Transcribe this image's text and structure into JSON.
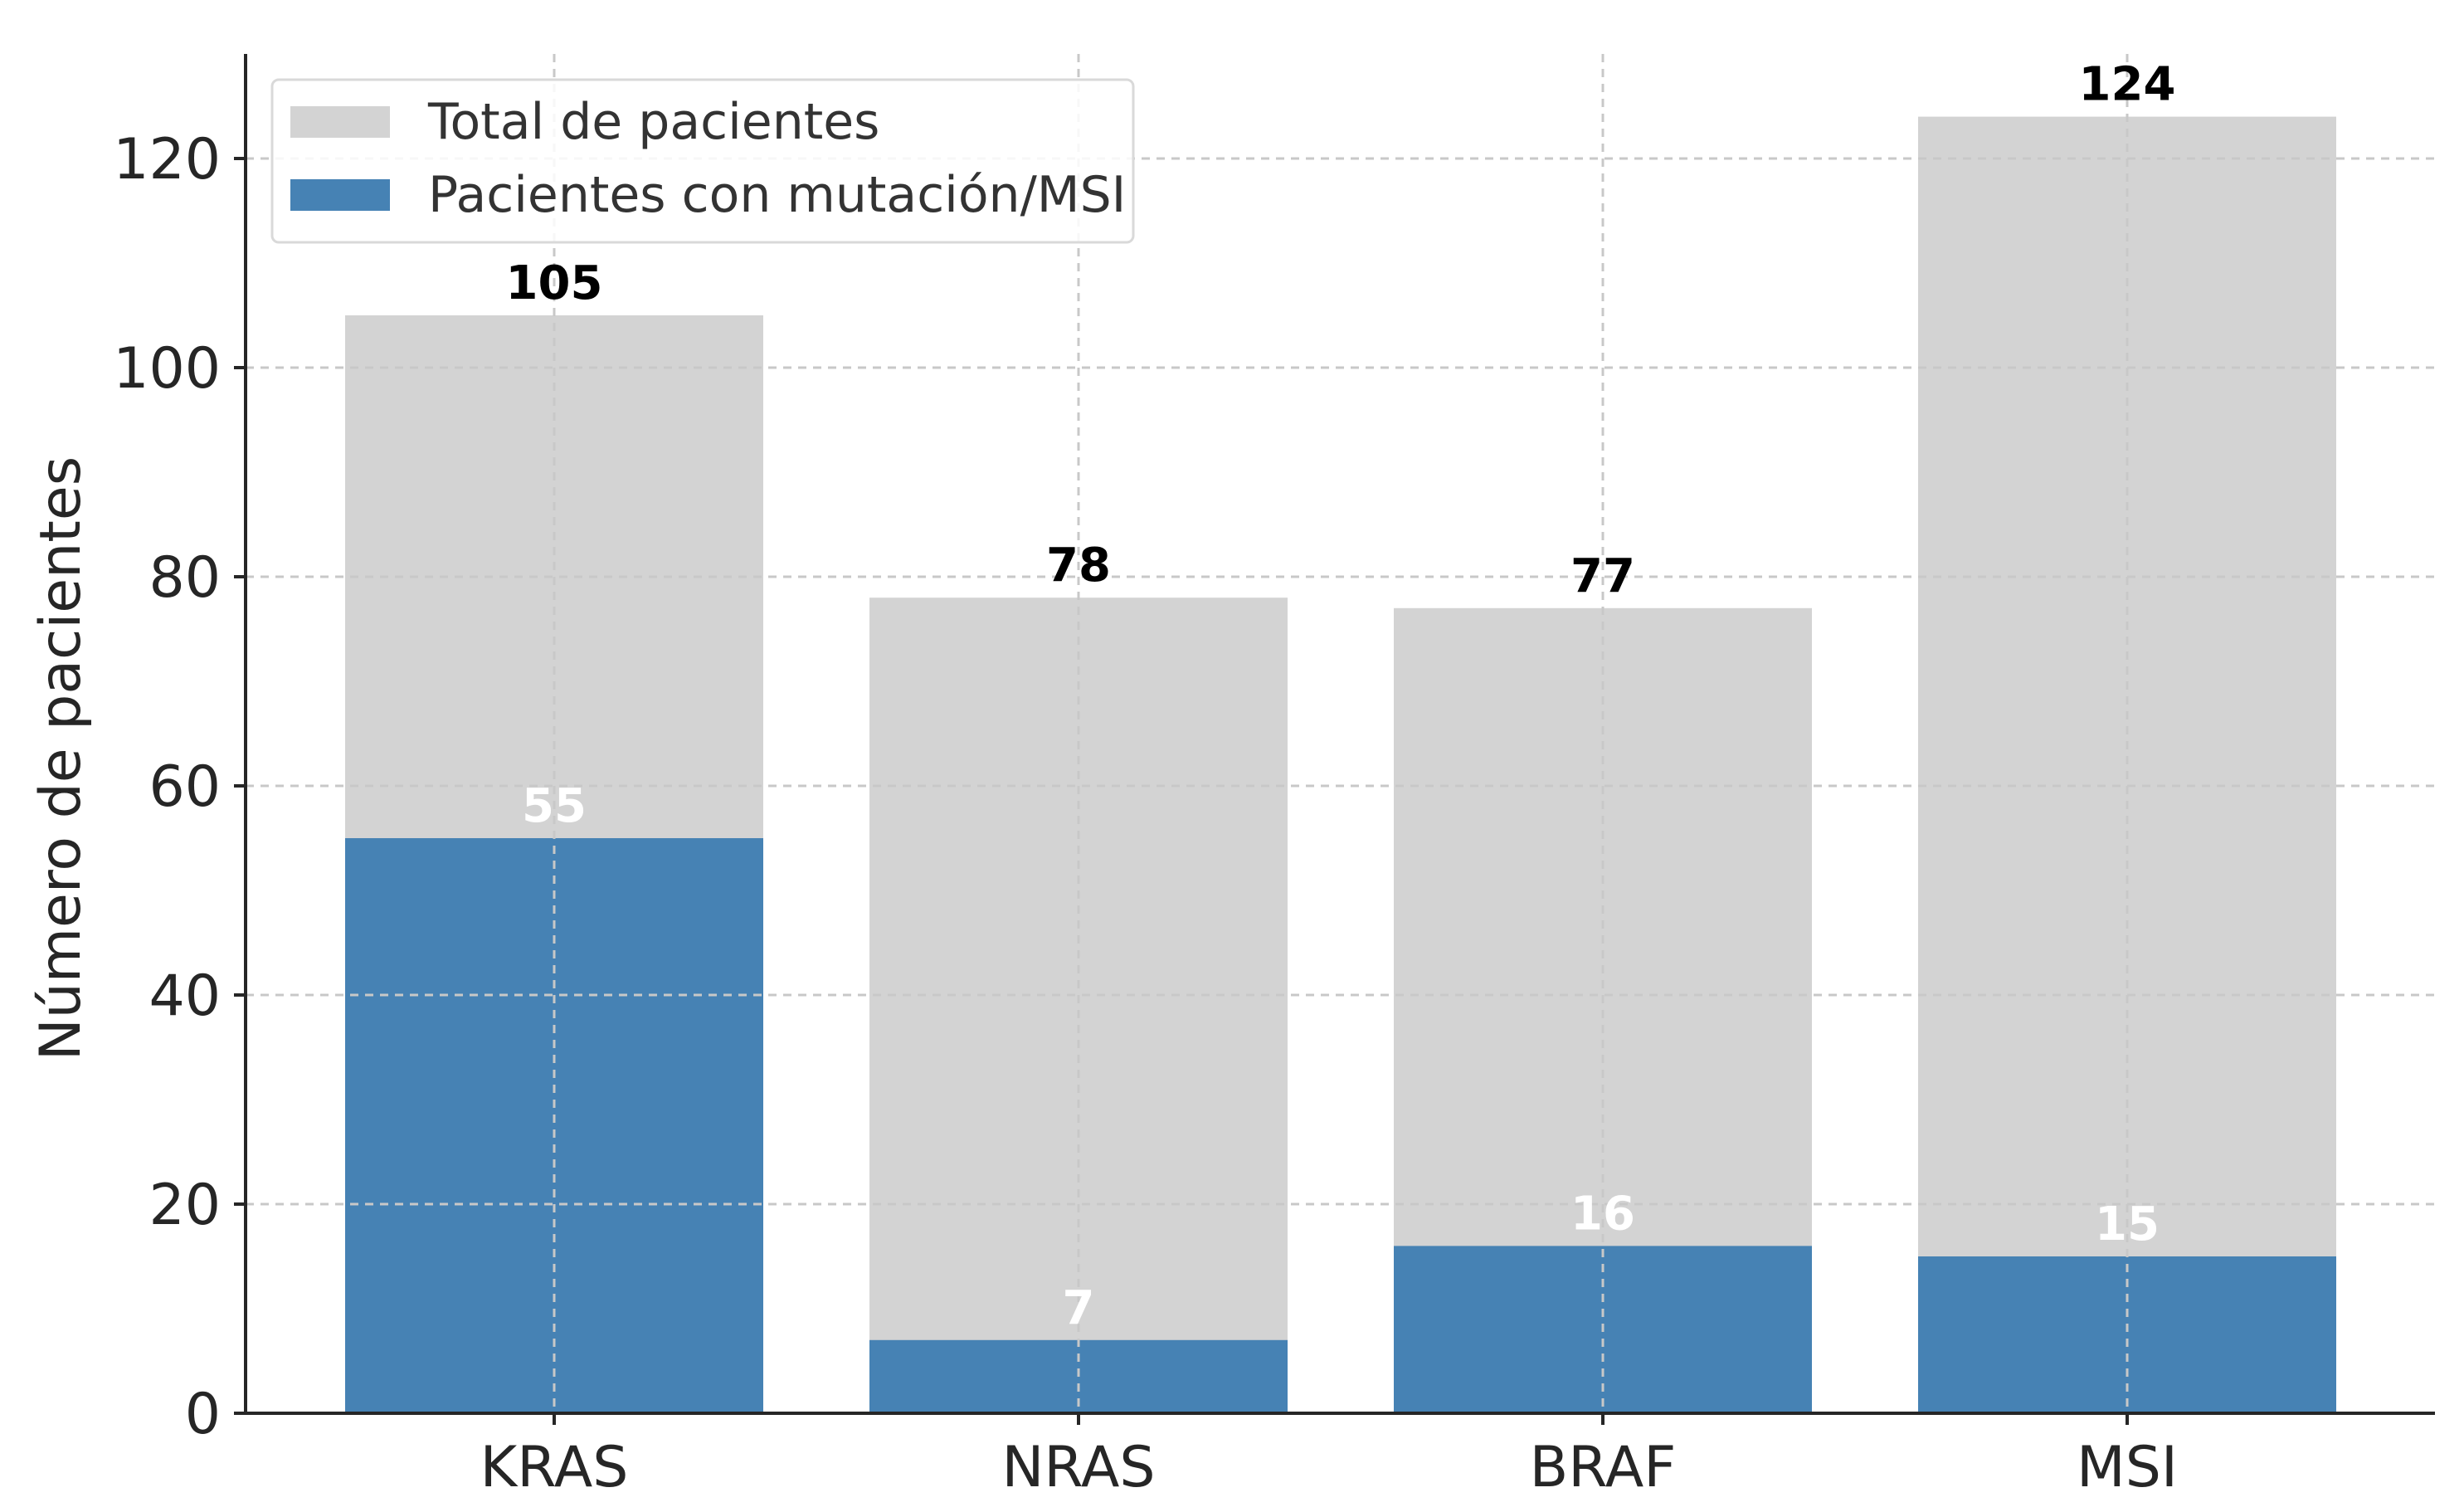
{
  "chart_data": {
    "type": "bar",
    "stacked": "overlay",
    "categories": [
      "KRAS",
      "NRAS",
      "BRAF",
      "MSI"
    ],
    "series": [
      {
        "name": "Total de pacientes",
        "values": [
          105,
          78,
          77,
          124
        ],
        "color": "#d3d3d3"
      },
      {
        "name": "Pacientes con mutación/MSI",
        "values": [
          55,
          7,
          16,
          15
        ],
        "color": "#4682b4"
      }
    ],
    "title": "",
    "xlabel": "",
    "ylabel": "Número de pacientes",
    "ylim": [
      0,
      130
    ],
    "yticks": [
      0,
      20,
      40,
      60,
      80,
      100,
      120
    ],
    "grid": true,
    "legend_position": "top-left",
    "value_labels": true
  }
}
